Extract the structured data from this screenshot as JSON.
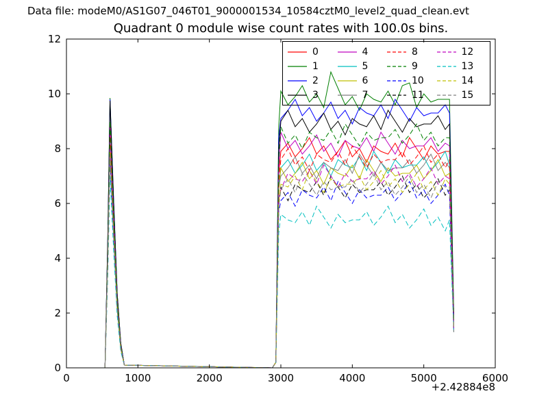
{
  "header": {
    "data_file_label": "Data file: modeM0/AS1G07_046T01_9000001534_10584cztM0_level2_quad_clean.evt"
  },
  "chart_data": {
    "type": "line",
    "title": "Quadrant 0 module wise count rates with 100.0s bins.",
    "xlabel": "",
    "ylabel": "",
    "x_offset_label": "+2.42884e8",
    "bin_seconds": 100.0,
    "xlim": [
      0,
      6000
    ],
    "ylim": [
      0,
      12
    ],
    "grid": false,
    "legend_position": "upper right",
    "legend_columns": 4,
    "xticks": [
      0,
      1000,
      2000,
      3000,
      4000,
      5000,
      6000
    ],
    "xtick_labels": [
      "0",
      "1000",
      "2000",
      "3000",
      "4000",
      "5000",
      "6000"
    ],
    "yticks": [
      0,
      2,
      4,
      6,
      8,
      10,
      12
    ],
    "ytick_labels": [
      "0",
      "2",
      "4",
      "6",
      "8",
      "10",
      "12"
    ],
    "x": [
      540,
      580,
      610,
      660,
      710,
      760,
      810,
      2880,
      2930,
      2970,
      3000,
      3100,
      3200,
      3300,
      3400,
      3500,
      3600,
      3700,
      3800,
      3900,
      4000,
      4100,
      4200,
      4300,
      4400,
      4500,
      4600,
      4700,
      4800,
      4900,
      5000,
      5100,
      5200,
      5300,
      5360,
      5420
    ],
    "series": [
      {
        "label": "0",
        "color": "#ff0000",
        "linestyle": "solid",
        "values": [
          0,
          4.5,
          8.9,
          5.6,
          2.5,
          0.8,
          0.1,
          0,
          0.2,
          7.1,
          7.9,
          8.2,
          7.7,
          8.0,
          8.4,
          7.8,
          8.1,
          7.6,
          7.9,
          8.3,
          7.7,
          8.0,
          7.5,
          8.1,
          7.9,
          7.8,
          8.2,
          7.7,
          8.4,
          8.0,
          7.6,
          8.1,
          7.8,
          7.9,
          7.9,
          1.6
        ]
      },
      {
        "label": "1",
        "color": "#007f00",
        "linestyle": "solid",
        "values": [
          0,
          5.0,
          9.85,
          6.1,
          2.7,
          0.9,
          0.1,
          0,
          0.2,
          8.8,
          10.1,
          9.6,
          9.9,
          10.3,
          9.7,
          10.0,
          9.5,
          10.8,
          10.2,
          9.6,
          9.9,
          9.4,
          10.0,
          9.8,
          9.7,
          10.1,
          9.6,
          10.3,
          10.4,
          9.5,
          10.0,
          9.7,
          9.8,
          9.8,
          9.8,
          1.9
        ]
      },
      {
        "label": "2",
        "color": "#0000ff",
        "linestyle": "solid",
        "values": [
          0,
          4.9,
          9.8,
          6.1,
          2.7,
          0.9,
          0.1,
          0,
          0.2,
          8.4,
          9.1,
          9.4,
          9.8,
          9.2,
          9.5,
          9.0,
          9.3,
          9.7,
          9.1,
          9.4,
          8.9,
          9.5,
          9.3,
          9.2,
          9.6,
          9.1,
          9.8,
          9.4,
          9.0,
          9.5,
          9.2,
          9.3,
          9.3,
          9.6,
          9.3,
          1.8
        ]
      },
      {
        "label": "3",
        "color": "#000000",
        "linestyle": "solid",
        "values": [
          0,
          4.9,
          9.75,
          6.0,
          2.7,
          0.9,
          0.1,
          0,
          0.2,
          8.0,
          9.0,
          9.4,
          8.8,
          9.1,
          8.6,
          8.9,
          9.3,
          8.7,
          9.0,
          8.5,
          9.1,
          8.9,
          8.8,
          9.2,
          8.7,
          9.4,
          9.0,
          8.6,
          9.1,
          8.8,
          8.9,
          8.9,
          9.2,
          8.7,
          8.9,
          1.8
        ]
      },
      {
        "label": "4",
        "color": "#bf00bf",
        "linestyle": "solid",
        "values": [
          0,
          4.4,
          8.8,
          5.5,
          2.4,
          0.8,
          0.1,
          0,
          0.2,
          7.3,
          8.6,
          8.0,
          8.3,
          7.8,
          8.1,
          8.5,
          7.9,
          8.2,
          7.7,
          8.3,
          8.1,
          8.0,
          8.4,
          7.9,
          8.6,
          8.2,
          7.8,
          8.3,
          8.0,
          8.1,
          8.1,
          8.4,
          7.9,
          8.2,
          8.1,
          1.6
        ]
      },
      {
        "label": "5",
        "color": "#00bfbf",
        "linestyle": "solid",
        "values": [
          0,
          4.2,
          8.4,
          5.2,
          2.3,
          0.8,
          0.1,
          0,
          0.2,
          6.7,
          7.3,
          7.6,
          7.1,
          7.4,
          7.8,
          7.2,
          7.5,
          7.0,
          7.6,
          7.4,
          7.3,
          7.7,
          7.2,
          7.9,
          7.5,
          7.1,
          7.6,
          7.3,
          7.4,
          7.4,
          7.7,
          7.2,
          7.5,
          7.9,
          7.4,
          1.5
        ]
      },
      {
        "label": "6",
        "color": "#bfbf00",
        "linestyle": "solid",
        "values": [
          0,
          4.1,
          8.2,
          5.1,
          2.3,
          0.7,
          0.1,
          0,
          0.2,
          6.4,
          7.3,
          6.8,
          7.1,
          7.5,
          6.9,
          7.2,
          6.7,
          7.3,
          7.1,
          7.0,
          7.4,
          6.9,
          7.6,
          7.2,
          6.8,
          7.3,
          7.0,
          7.1,
          7.1,
          7.4,
          6.9,
          7.2,
          7.6,
          7.0,
          7.1,
          1.4
        ]
      },
      {
        "label": "7",
        "color": "#7f7f7f",
        "linestyle": "solid",
        "values": [
          0,
          4.2,
          8.3,
          5.2,
          2.3,
          0.7,
          0.1,
          0,
          0.2,
          6.6,
          7.0,
          7.3,
          7.7,
          7.1,
          7.4,
          6.9,
          7.5,
          7.3,
          7.2,
          7.6,
          7.1,
          7.8,
          7.4,
          7.0,
          7.5,
          7.2,
          7.3,
          7.3,
          7.6,
          7.1,
          7.4,
          7.8,
          7.2,
          7.5,
          7.3,
          1.5
        ]
      },
      {
        "label": "8",
        "color": "#ff0000",
        "linestyle": "dashed",
        "values": [
          0,
          4.3,
          8.6,
          5.3,
          2.4,
          0.8,
          0.1,
          0,
          0.2,
          6.8,
          7.6,
          8.0,
          7.4,
          7.7,
          7.2,
          7.8,
          7.6,
          7.5,
          7.9,
          7.4,
          8.1,
          7.7,
          7.3,
          7.8,
          7.5,
          7.6,
          7.6,
          7.9,
          7.4,
          7.7,
          8.1,
          7.5,
          7.8,
          7.3,
          7.6,
          1.5
        ]
      },
      {
        "label": "9",
        "color": "#007f00",
        "linestyle": "dashed",
        "values": [
          0,
          4.5,
          9.0,
          5.6,
          2.5,
          0.8,
          0.1,
          0,
          0.2,
          7.6,
          8.8,
          8.2,
          8.5,
          8.0,
          8.6,
          8.4,
          8.3,
          8.7,
          8.2,
          8.9,
          8.5,
          8.1,
          8.6,
          8.3,
          8.4,
          8.4,
          8.7,
          8.2,
          8.5,
          8.9,
          8.3,
          8.6,
          8.1,
          8.4,
          8.4,
          1.7
        ]
      },
      {
        "label": "10",
        "color": "#0000ff",
        "linestyle": "dashed",
        "values": [
          0,
          3.8,
          7.6,
          4.7,
          2.1,
          0.7,
          0.1,
          0,
          0.2,
          5.7,
          6.1,
          6.4,
          5.9,
          6.5,
          6.3,
          6.2,
          6.6,
          6.1,
          6.8,
          6.4,
          6.0,
          6.5,
          6.2,
          6.3,
          6.3,
          6.6,
          6.1,
          6.4,
          6.8,
          6.2,
          6.5,
          6.0,
          6.3,
          6.7,
          6.3,
          1.3
        ]
      },
      {
        "label": "11",
        "color": "#000000",
        "linestyle": "dashed",
        "values": [
          0,
          3.9,
          7.8,
          4.8,
          2.2,
          0.7,
          0.1,
          0,
          0.2,
          5.9,
          6.6,
          6.1,
          6.7,
          6.5,
          6.4,
          6.8,
          6.3,
          7.0,
          6.6,
          6.2,
          6.7,
          6.4,
          6.5,
          6.5,
          6.8,
          6.3,
          6.6,
          7.0,
          6.4,
          6.7,
          6.2,
          6.5,
          6.9,
          6.3,
          6.5,
          1.3
        ]
      },
      {
        "label": "12",
        "color": "#bf00bf",
        "linestyle": "dashed",
        "values": [
          0,
          4.0,
          8.0,
          5.0,
          2.2,
          0.7,
          0.1,
          0,
          0.2,
          6.2,
          6.5,
          7.1,
          6.9,
          6.8,
          7.2,
          6.7,
          7.4,
          7.0,
          6.6,
          7.1,
          6.8,
          6.9,
          6.9,
          7.2,
          6.7,
          7.0,
          7.4,
          6.8,
          7.1,
          6.6,
          6.9,
          7.3,
          6.7,
          7.0,
          6.9,
          1.4
        ]
      },
      {
        "label": "13",
        "color": "#00bfbf",
        "linestyle": "dashed",
        "values": [
          0,
          3.5,
          7.0,
          4.3,
          1.9,
          0.6,
          0.1,
          0,
          0.2,
          4.9,
          5.6,
          5.4,
          5.3,
          5.7,
          5.2,
          5.9,
          5.5,
          5.1,
          5.6,
          5.3,
          5.4,
          5.4,
          5.7,
          5.2,
          5.5,
          5.9,
          5.3,
          5.6,
          5.1,
          5.4,
          5.8,
          5.2,
          5.5,
          5.0,
          5.4,
          1.3
        ]
      },
      {
        "label": "14",
        "color": "#bfbf00",
        "linestyle": "dashed",
        "values": [
          0,
          4.0,
          7.9,
          4.9,
          2.2,
          0.7,
          0.1,
          0,
          0.2,
          6.0,
          6.7,
          6.6,
          7.0,
          6.5,
          7.2,
          6.8,
          6.4,
          6.9,
          6.6,
          6.7,
          6.7,
          7.0,
          6.5,
          6.8,
          7.2,
          6.6,
          6.9,
          6.4,
          6.7,
          7.1,
          6.5,
          6.8,
          6.3,
          6.9,
          6.7,
          1.4
        ]
      },
      {
        "label": "15",
        "color": "#7f7f7f",
        "linestyle": "dashed",
        "values": [
          0,
          3.9,
          7.8,
          4.8,
          2.2,
          0.7,
          0.1,
          0,
          0.2,
          5.9,
          6.5,
          6.9,
          6.4,
          7.1,
          6.7,
          6.3,
          6.8,
          6.5,
          6.6,
          6.6,
          6.9,
          6.4,
          6.7,
          7.1,
          6.5,
          6.8,
          6.3,
          6.6,
          7.0,
          6.4,
          6.7,
          6.2,
          6.8,
          6.6,
          6.6,
          1.3
        ]
      }
    ]
  }
}
